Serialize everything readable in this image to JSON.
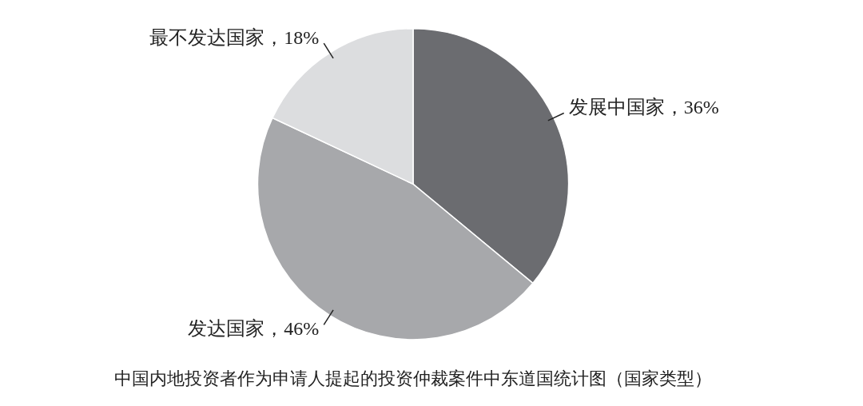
{
  "chart_data": {
    "type": "pie",
    "title": "中国内地投资者作为申请人提起的投资仲裁案件中东道国统计图（国家类型）",
    "categories": [
      "发展中国家",
      "发达国家",
      "最不发达国家"
    ],
    "values": [
      36,
      46,
      18
    ],
    "value_labels": [
      "36%",
      "46%",
      "18%"
    ],
    "colors": [
      "#6b6c70",
      "#a7a8ab",
      "#dcdddf"
    ],
    "legend": false
  }
}
